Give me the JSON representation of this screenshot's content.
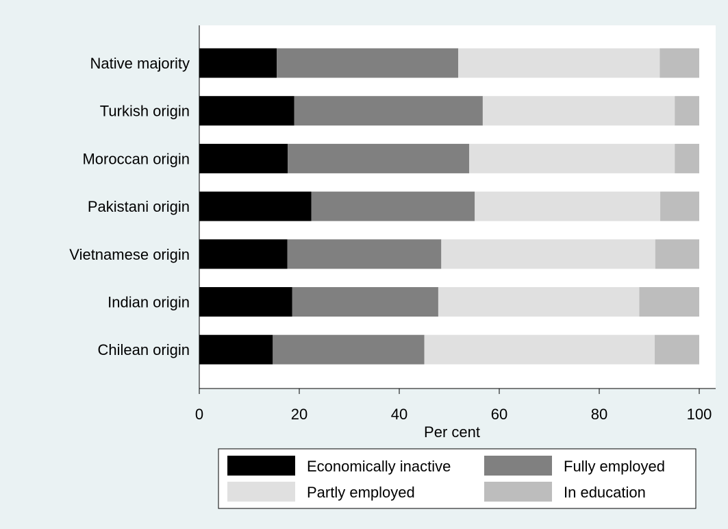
{
  "chart_data": {
    "type": "bar",
    "orientation": "horizontal",
    "stacked": true,
    "title": "",
    "xlabel": "Per cent",
    "ylabel": "",
    "xlim": [
      0,
      100
    ],
    "xticks": [
      0,
      20,
      40,
      60,
      80,
      100
    ],
    "grid": false,
    "legend_position": "bottom",
    "categories": [
      "Native majority",
      "Turkish origin",
      "Moroccan origin",
      "Pakistani origin",
      "Vietnamese origin",
      "Indian origin",
      "Chilean origin"
    ],
    "series": [
      {
        "name": "Economically inactive",
        "color": "#000000",
        "values": [
          15.5,
          19.0,
          17.7,
          22.4,
          17.6,
          18.6,
          14.7
        ]
      },
      {
        "name": "Fully employed",
        "color": "#808080",
        "values": [
          36.3,
          37.7,
          36.3,
          32.7,
          30.8,
          29.2,
          30.3
        ]
      },
      {
        "name": "Partly employed",
        "color": "#e0e0e0",
        "values": [
          40.3,
          38.4,
          41.1,
          37.1,
          42.8,
          40.2,
          46.1
        ]
      },
      {
        "name": "In education",
        "color": "#bdbdbd",
        "values": [
          7.9,
          4.9,
          4.9,
          7.8,
          8.8,
          12.0,
          8.9
        ]
      }
    ]
  }
}
